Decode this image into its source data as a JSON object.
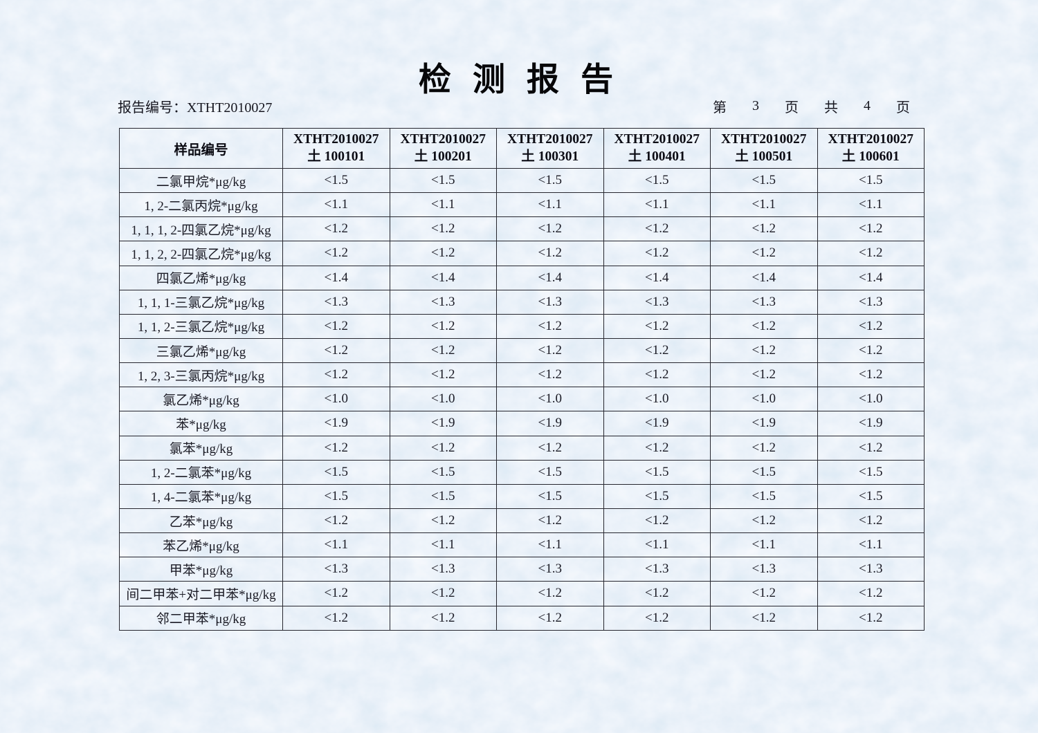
{
  "page": {
    "title": "检 测 报 告",
    "report_no": "报告编号：XTHT2010027",
    "pagination": {
      "prefix": "第",
      "page_number": "3",
      "page_unit": "页",
      "of_label": "共",
      "total_pages": "4",
      "total_unit": "页"
    }
  },
  "table": {
    "corner_header": "样品编号",
    "sample_columns": [
      {
        "code": "XTHT2010027",
        "sample": "土 100101"
      },
      {
        "code": "XTHT2010027",
        "sample": "土 100201"
      },
      {
        "code": "XTHT2010027",
        "sample": "土 100301"
      },
      {
        "code": "XTHT2010027",
        "sample": "土 100401"
      },
      {
        "code": "XTHT2010027",
        "sample": "土 100501"
      },
      {
        "code": "XTHT2010027",
        "sample": "土 100601"
      }
    ],
    "rows": [
      {
        "name": "二氯甲烷*μg/kg",
        "values": [
          "<1.5",
          "<1.5",
          "<1.5",
          "<1.5",
          "<1.5",
          "<1.5"
        ]
      },
      {
        "name": "1, 2-二氯丙烷*μg/kg",
        "values": [
          "<1.1",
          "<1.1",
          "<1.1",
          "<1.1",
          "<1.1",
          "<1.1"
        ]
      },
      {
        "name": "1, 1, 1, 2-四氯乙烷*μg/kg",
        "values": [
          "<1.2",
          "<1.2",
          "<1.2",
          "<1.2",
          "<1.2",
          "<1.2"
        ]
      },
      {
        "name": "1, 1, 2, 2-四氯乙烷*μg/kg",
        "values": [
          "<1.2",
          "<1.2",
          "<1.2",
          "<1.2",
          "<1.2",
          "<1.2"
        ]
      },
      {
        "name": "四氯乙烯*μg/kg",
        "values": [
          "<1.4",
          "<1.4",
          "<1.4",
          "<1.4",
          "<1.4",
          "<1.4"
        ]
      },
      {
        "name": "1, 1, 1-三氯乙烷*μg/kg",
        "values": [
          "<1.3",
          "<1.3",
          "<1.3",
          "<1.3",
          "<1.3",
          "<1.3"
        ]
      },
      {
        "name": "1, 1, 2-三氯乙烷*μg/kg",
        "values": [
          "<1.2",
          "<1.2",
          "<1.2",
          "<1.2",
          "<1.2",
          "<1.2"
        ]
      },
      {
        "name": "三氯乙烯*μg/kg",
        "values": [
          "<1.2",
          "<1.2",
          "<1.2",
          "<1.2",
          "<1.2",
          "<1.2"
        ]
      },
      {
        "name": "1, 2, 3-三氯丙烷*μg/kg",
        "values": [
          "<1.2",
          "<1.2",
          "<1.2",
          "<1.2",
          "<1.2",
          "<1.2"
        ]
      },
      {
        "name": "氯乙烯*μg/kg",
        "values": [
          "<1.0",
          "<1.0",
          "<1.0",
          "<1.0",
          "<1.0",
          "<1.0"
        ]
      },
      {
        "name": "苯*μg/kg",
        "values": [
          "<1.9",
          "<1.9",
          "<1.9",
          "<1.9",
          "<1.9",
          "<1.9"
        ]
      },
      {
        "name": "氯苯*μg/kg",
        "values": [
          "<1.2",
          "<1.2",
          "<1.2",
          "<1.2",
          "<1.2",
          "<1.2"
        ]
      },
      {
        "name": "1, 2-二氯苯*μg/kg",
        "values": [
          "<1.5",
          "<1.5",
          "<1.5",
          "<1.5",
          "<1.5",
          "<1.5"
        ]
      },
      {
        "name": "1, 4-二氯苯*μg/kg",
        "values": [
          "<1.5",
          "<1.5",
          "<1.5",
          "<1.5",
          "<1.5",
          "<1.5"
        ]
      },
      {
        "name": "乙苯*μg/kg",
        "values": [
          "<1.2",
          "<1.2",
          "<1.2",
          "<1.2",
          "<1.2",
          "<1.2"
        ]
      },
      {
        "name": "苯乙烯*μg/kg",
        "values": [
          "<1.1",
          "<1.1",
          "<1.1",
          "<1.1",
          "<1.1",
          "<1.1"
        ]
      },
      {
        "name": "甲苯*μg/kg",
        "values": [
          "<1.3",
          "<1.3",
          "<1.3",
          "<1.3",
          "<1.3",
          "<1.3"
        ]
      },
      {
        "name": "间二甲苯+对二甲苯*μg/kg",
        "values": [
          "<1.2",
          "<1.2",
          "<1.2",
          "<1.2",
          "<1.2",
          "<1.2"
        ]
      },
      {
        "name": "邻二甲苯*μg/kg",
        "values": [
          "<1.2",
          "<1.2",
          "<1.2",
          "<1.2",
          "<1.2",
          "<1.2"
        ]
      }
    ]
  },
  "colors": {
    "paper_base": "#cfe0f0",
    "paper_dark": "#b3cde8",
    "paper_light": "#f4f9ff",
    "table_line": "#26262e",
    "text": "#1a1a24"
  }
}
